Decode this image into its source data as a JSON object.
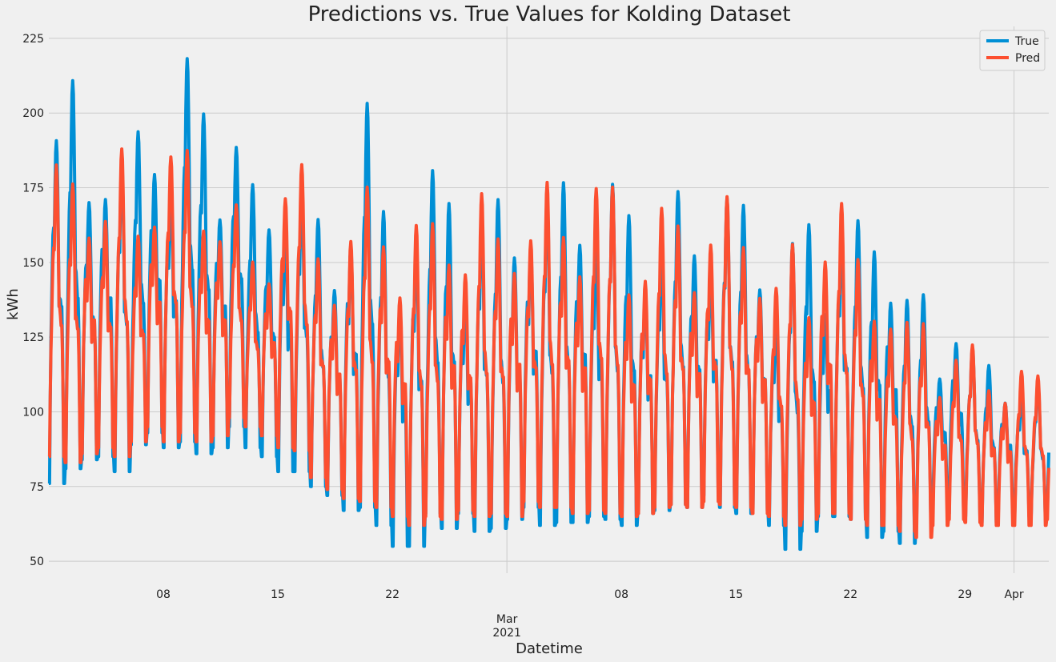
{
  "chart_data": {
    "type": "line",
    "title": "Predictions vs. True Values for Kolding Dataset",
    "xlabel": "Datetime",
    "ylabel": "kWh",
    "xlim": [
      "2021-02-01T00:00",
      "2021-04-03T03:00"
    ],
    "ylim": [
      46,
      229
    ],
    "yticks": [
      50,
      75,
      100,
      125,
      150,
      175,
      200,
      225
    ],
    "xticks": [
      {
        "date": "2021-02-08",
        "label": "08"
      },
      {
        "date": "2021-02-15",
        "label": "15"
      },
      {
        "date": "2021-02-22",
        "label": "22"
      },
      {
        "date": "2021-03-01",
        "label": "Mar",
        "sublabel": "2021"
      },
      {
        "date": "2021-03-08",
        "label": "08"
      },
      {
        "date": "2021-03-15",
        "label": "15"
      },
      {
        "date": "2021-03-22",
        "label": "22"
      },
      {
        "date": "2021-03-29",
        "label": "29"
      },
      {
        "date": "2021-04-01",
        "label": "Apr"
      }
    ],
    "grid": true,
    "legend_position": "top-right",
    "frequency": "hourly",
    "series": [
      {
        "name": "True",
        "color": "#008fd5",
        "daily_peak": [
          211,
          211,
          190,
          206,
          192,
          197,
          209,
          200,
          221,
          211,
          196,
          208,
          176,
          176,
          192,
          183,
          166,
          162,
          186,
          208,
          175,
          168,
          181,
          181,
          188,
          167,
          179,
          172,
          176,
          187,
          178,
          183,
          191,
          178,
          177,
          180,
          171,
          166,
          174,
          173,
          175,
          179,
          173,
          167,
          150,
          158,
          174,
          161,
          178,
          164,
          174,
          168,
          145,
          141,
          125,
          142,
          123,
          120,
          118,
          115,
          110,
          122
        ],
        "daily_low": [
          76,
          81,
          84,
          85,
          80,
          89,
          93,
          88,
          90,
          86,
          88,
          95,
          88,
          85,
          80,
          80,
          75,
          72,
          67,
          68,
          62,
          55,
          55,
          66,
          61,
          66,
          60,
          61,
          64,
          68,
          62,
          63,
          63,
          65,
          64,
          62,
          66,
          67,
          69,
          68,
          72,
          68,
          66,
          67,
          62,
          54,
          60,
          65,
          65,
          64,
          58,
          60,
          56,
          62,
          68,
          66,
          65,
          63,
          66,
          65,
          64,
          67
        ]
      },
      {
        "name": "Pred",
        "color": "#fc4f30",
        "daily_peak": [
          185,
          185,
          188,
          180,
          188,
          172,
          190,
          196,
          189,
          182,
          180,
          172,
          154,
          163,
          192,
          183,
          163,
          162,
          169,
          176,
          179,
          166,
          168,
          168,
          181,
          168,
          174,
          170,
          181,
          172,
          177,
          180,
          177,
          183,
          179,
          165,
          168,
          170,
          172,
          170,
          173,
          172,
          173,
          168,
          149,
          158,
          153,
          179,
          173,
          158,
          158,
          143,
          130,
          142,
          123,
          124,
          123,
          120,
          118,
          116,
          115,
          113
        ],
        "daily_low": [
          85,
          83,
          86,
          88,
          85,
          90,
          95,
          90,
          93,
          90,
          92,
          98,
          95,
          92,
          88,
          87,
          78,
          74,
          71,
          70,
          68,
          65,
          62,
          65,
          64,
          67,
          65,
          66,
          65,
          70,
          68,
          68,
          66,
          67,
          66,
          65,
          66,
          68,
          69,
          68,
          70,
          69,
          68,
          66,
          65,
          62,
          64,
          66,
          66,
          64,
          62,
          62,
          60,
          58,
          62,
          64,
          63,
          62,
          62,
          62,
          62,
          64
        ]
      }
    ]
  }
}
